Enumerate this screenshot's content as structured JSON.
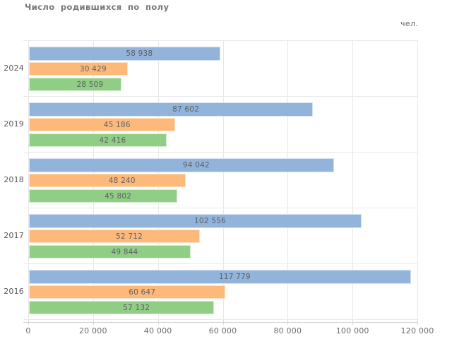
{
  "title": "Число родившихся по полу",
  "unit_label": "чел.",
  "chart_data": {
    "type": "bar",
    "orientation": "horizontal",
    "title": "Число родившихся по полу",
    "unit": "чел.",
    "categories": [
      "2024",
      "2019",
      "2018",
      "2017",
      "2016"
    ],
    "series": [
      {
        "name": "blue-series",
        "color": "#92b4db",
        "border_color": "#d6e3f3",
        "values": [
          58938,
          87602,
          94042,
          102556,
          117779
        ],
        "labels": [
          "58 938",
          "87 602",
          "94 042",
          "102 556",
          "117 779"
        ]
      },
      {
        "name": "orange-series",
        "color": "#fdb97a",
        "border_color": "#fee3c4",
        "values": [
          30429,
          45186,
          48240,
          52712,
          60647
        ],
        "labels": [
          "30 429",
          "45 186",
          "48 240",
          "52 712",
          "60 647"
        ]
      },
      {
        "name": "green-series",
        "color": "#90ce85",
        "border_color": "#d8eed2",
        "values": [
          28509,
          42416,
          45802,
          49844,
          57132
        ],
        "labels": [
          "28 509",
          "42 416",
          "45 802",
          "49 844",
          "57 132"
        ]
      }
    ],
    "x_ticks": [
      0,
      20000,
      40000,
      60000,
      80000,
      100000,
      120000
    ],
    "x_tick_labels": [
      "0",
      "20 000",
      "40 000",
      "60 000",
      "80 000",
      "100 000",
      "120 000"
    ],
    "xlim": [
      0,
      120000
    ],
    "grid": true,
    "legend": "none",
    "value_labels": "inside-bars"
  },
  "colors": {
    "title_text": "#777777",
    "unit_text": "#666666",
    "tick_text": "#6b6b6b",
    "category_text": "#595959",
    "value_text": "#5c6066",
    "gridline": "#e7e7e7",
    "separator": "#e9e9e9",
    "axis_line": "#d2d2d2",
    "tick_mark": "#d9d9d9"
  }
}
